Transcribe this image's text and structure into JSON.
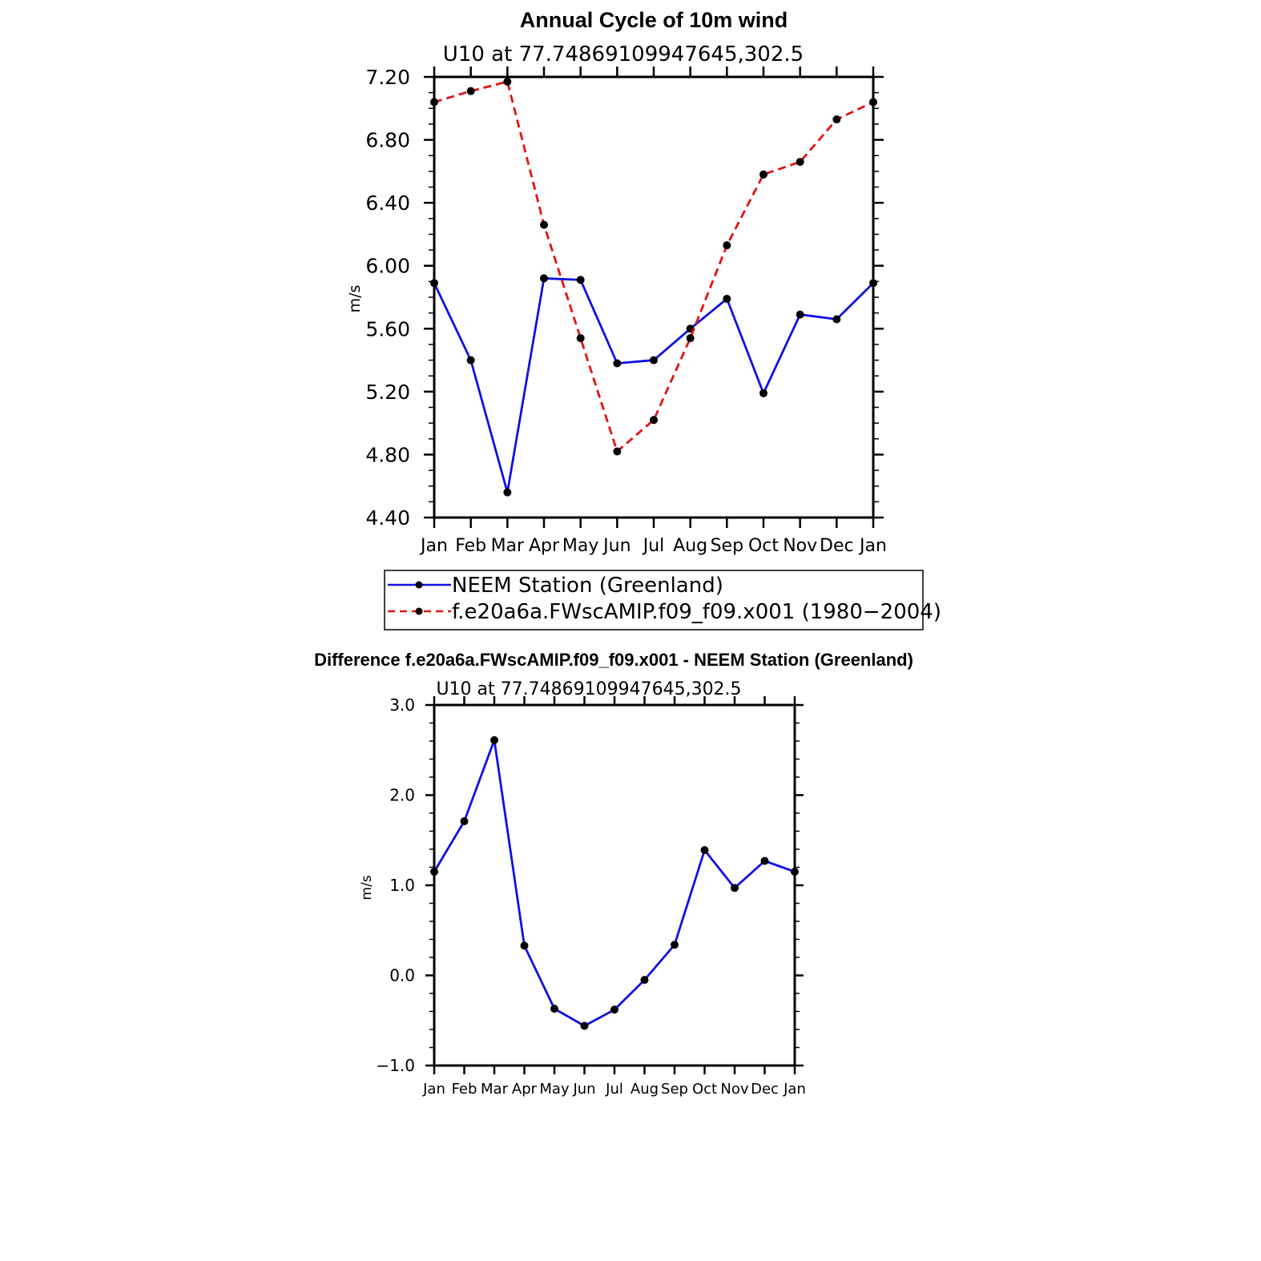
{
  "chart_data": [
    {
      "type": "line",
      "title": "Annual Cycle of 10m wind",
      "subtitle": "U10 at 77.74869109947645,302.5",
      "ylabel": "m/s",
      "ylim": [
        4.4,
        7.2
      ],
      "yticks": [
        "4.40",
        "4.80",
        "5.20",
        "5.60",
        "6.00",
        "6.40",
        "6.80",
        "7.20"
      ],
      "categories": [
        "Jan",
        "Feb",
        "Mar",
        "Apr",
        "May",
        "Jun",
        "Jul",
        "Aug",
        "Sep",
        "Oct",
        "Nov",
        "Dec",
        "Jan"
      ],
      "series": [
        {
          "name": "NEEM Station (Greenland)",
          "color": "#1010e6",
          "dash": "solid",
          "values": [
            5.89,
            5.4,
            4.56,
            5.92,
            5.91,
            5.38,
            5.4,
            5.6,
            5.79,
            5.19,
            5.69,
            5.66,
            5.89
          ]
        },
        {
          "name": "f.e20a6a.FWscAMIP.f09_f09.x001 (1980−2004)",
          "color": "#e61010",
          "dash": "dashed",
          "values": [
            7.04,
            7.11,
            7.17,
            6.26,
            5.54,
            4.82,
            5.02,
            5.54,
            6.13,
            6.58,
            6.66,
            6.93,
            7.04
          ]
        }
      ],
      "legend": "bottom"
    },
    {
      "type": "line",
      "title": "Difference f.e20a6a.FWscAMIP.f09_f09.x001 - NEEM Station (Greenland)",
      "subtitle": "U10 at 77.74869109947645,302.5",
      "ylabel": "m/s",
      "ylim": [
        -1.0,
        3.0
      ],
      "yticks": [
        "−1.0",
        "0.0",
        "1.0",
        "2.0",
        "3.0"
      ],
      "categories": [
        "Jan",
        "Feb",
        "Mar",
        "Apr",
        "May",
        "Jun",
        "Jul",
        "Aug",
        "Sep",
        "Oct",
        "Nov",
        "Dec",
        "Jan"
      ],
      "series": [
        {
          "color": "#1010e6",
          "dash": "solid",
          "values": [
            1.15,
            1.71,
            2.61,
            0.33,
            -0.37,
            -0.56,
            -0.38,
            -0.05,
            0.34,
            1.39,
            0.97,
            1.27,
            1.15
          ]
        }
      ]
    }
  ]
}
